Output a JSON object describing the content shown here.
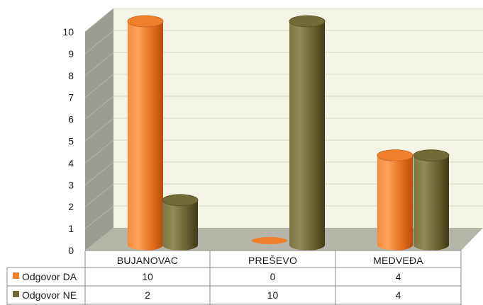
{
  "chart_data": {
    "type": "bar",
    "style": "3d-cylinder",
    "categories": [
      "BUJANOVAC",
      "PREŠEVO",
      "MEDVEĐA"
    ],
    "series": [
      {
        "name": "Odgovor DA",
        "color": "#F07F2B",
        "values": [
          10,
          0,
          4
        ]
      },
      {
        "name": "Odgovor NE",
        "color": "#726A37",
        "values": [
          2,
          10,
          4
        ]
      }
    ],
    "ylim": [
      0,
      10
    ],
    "yticks": [
      0,
      1,
      2,
      3,
      4,
      5,
      6,
      7,
      8,
      9,
      10
    ],
    "grid": true,
    "data_table": true,
    "title": "",
    "xlabel": "",
    "ylabel": ""
  },
  "colors": {
    "back_wall": "#F3F4E3",
    "side_wall": "#9B9B92",
    "floor": "#B4B5A8",
    "gridline": "#D6D7C2"
  }
}
